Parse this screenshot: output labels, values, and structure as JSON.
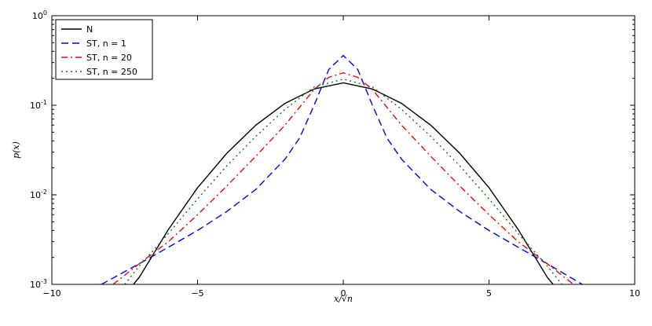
{
  "chart_data": {
    "type": "line",
    "xlabel": "x/√n",
    "ylabel": "p(x)",
    "xlim": [
      -10,
      10
    ],
    "ylim": [
      0.001,
      1
    ],
    "yscale": "log",
    "grid": false,
    "legend_position": "top-left",
    "x_ticks": [
      -10,
      -5,
      0,
      5,
      10
    ],
    "x_tick_labels": [
      "−10",
      "−5",
      "0",
      "5",
      "10"
    ],
    "y_ticks": [
      {
        "value": 1,
        "base": "10",
        "exp": "0"
      },
      {
        "value": 0.1,
        "base": "10",
        "exp": "-1"
      },
      {
        "value": 0.01,
        "base": "10",
        "exp": "-2"
      },
      {
        "value": 0.001,
        "base": "10",
        "exp": "-3"
      }
    ],
    "series": [
      {
        "name": "N",
        "color": "#000000",
        "dash": "solid",
        "x": [
          -7.2,
          -7,
          -6,
          -5,
          -4,
          -3,
          -2,
          -1,
          0,
          1,
          2,
          3,
          4,
          5,
          6,
          7,
          7.2
        ],
        "y": [
          0.001,
          0.0012,
          0.0041,
          0.012,
          0.029,
          0.06,
          0.105,
          0.152,
          0.178,
          0.152,
          0.105,
          0.06,
          0.029,
          0.012,
          0.0041,
          0.0012,
          0.001
        ]
      },
      {
        "name": "ST, n = 1",
        "color": "#0000ff",
        "dash": "dashed",
        "x": [
          -8.3,
          -7,
          -6,
          -5,
          -4,
          -3,
          -2,
          -1.5,
          -1,
          -0.5,
          0,
          0.5,
          1,
          1.5,
          2,
          3,
          4,
          5,
          6,
          7,
          8.2
        ],
        "y": [
          0.001,
          0.0017,
          0.0026,
          0.004,
          0.0065,
          0.0115,
          0.025,
          0.043,
          0.1,
          0.25,
          0.36,
          0.25,
          0.1,
          0.043,
          0.025,
          0.0115,
          0.0065,
          0.004,
          0.0026,
          0.0017,
          0.001
        ]
      },
      {
        "name": "ST, n = 20",
        "color": "#ff0000",
        "dash": "dashdot",
        "x": [
          -7.9,
          -7,
          -6,
          -5,
          -4,
          -3,
          -2,
          -1,
          -0.5,
          0,
          0.5,
          1,
          2,
          3,
          4,
          5,
          6,
          7,
          7.9
        ],
        "y": [
          0.001,
          0.0017,
          0.003,
          0.006,
          0.0125,
          0.027,
          0.06,
          0.15,
          0.205,
          0.23,
          0.205,
          0.15,
          0.06,
          0.027,
          0.0125,
          0.006,
          0.003,
          0.0017,
          0.001
        ]
      },
      {
        "name": "ST, n = 250",
        "color": "#008000",
        "dash": "dotted",
        "x": [
          -7.5,
          -7,
          -6,
          -5,
          -4,
          -3,
          -2,
          -1,
          0,
          1,
          2,
          3,
          4,
          5,
          6,
          7,
          7.5
        ],
        "y": [
          0.001,
          0.0016,
          0.0037,
          0.009,
          0.021,
          0.045,
          0.09,
          0.16,
          0.196,
          0.16,
          0.09,
          0.045,
          0.021,
          0.009,
          0.0037,
          0.0016,
          0.001
        ]
      }
    ]
  }
}
